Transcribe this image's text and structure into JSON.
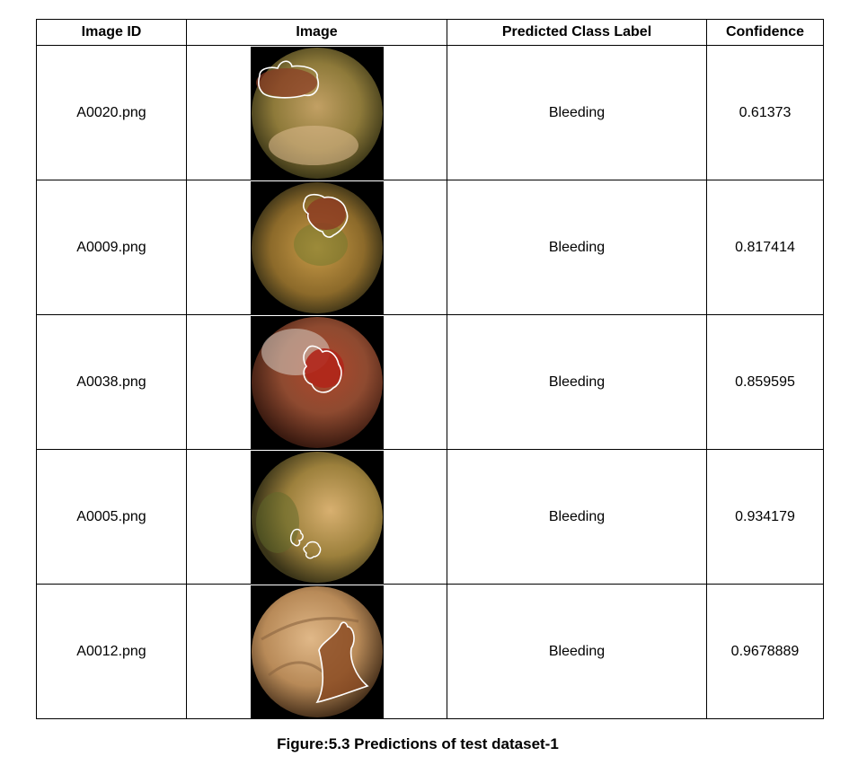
{
  "table": {
    "headers": [
      "Image ID",
      "Image",
      "Predicted Class Label",
      "Confidence"
    ],
    "rows": [
      {
        "id": "A0020.png",
        "label": "Bleeding",
        "confidence": "0.61373",
        "image_icon": "endoscopy-image-icon"
      },
      {
        "id": "A0009.png",
        "label": "Bleeding",
        "confidence": "0.817414",
        "image_icon": "endoscopy-image-icon"
      },
      {
        "id": "A0038.png",
        "label": "Bleeding",
        "confidence": "0.859595",
        "image_icon": "endoscopy-image-icon"
      },
      {
        "id": "A0005.png",
        "label": "Bleeding",
        "confidence": "0.934179",
        "image_icon": "endoscopy-image-icon"
      },
      {
        "id": "A0012.png",
        "label": "Bleeding",
        "confidence": "0.9678889",
        "image_icon": "endoscopy-image-icon"
      }
    ]
  },
  "caption": "Figure:5.3 Predictions of test dataset-1",
  "colors": {
    "border": "#000000",
    "background": "#ffffff"
  }
}
